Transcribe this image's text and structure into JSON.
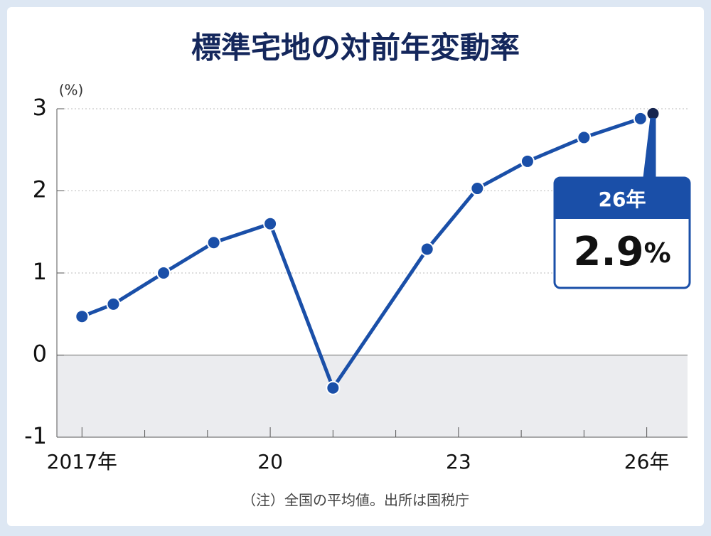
{
  "chart_data": {
    "type": "line",
    "title": "標準宅地の対前年変動率",
    "y_unit": "(%)",
    "note": "（注）全国の平均値。出所は国税庁",
    "x": [
      2017.0,
      2017.5,
      2018.3,
      2019.1,
      2020.0,
      2021.0,
      2022.5,
      2023.3,
      2024.1,
      2025.0,
      2025.9,
      2026.1
    ],
    "series": [
      {
        "name": "標準宅地",
        "color": "#1a4fa8",
        "values": [
          0.47,
          0.62,
          1.0,
          1.37,
          1.6,
          -0.4,
          1.29,
          2.03,
          2.36,
          2.65,
          2.88,
          2.94
        ],
        "value_labels": [
          null,
          null,
          null,
          null,
          null,
          null,
          null,
          null,
          null,
          null,
          null,
          "2.9%"
        ]
      }
    ],
    "callout_title": "26年",
    "xlim": [
      2016.6,
      2026.65
    ],
    "xticks": [
      {
        "value": 2017,
        "label": "2017年"
      },
      {
        "value": 2020,
        "label": "20"
      },
      {
        "value": 2023,
        "label": "23"
      },
      {
        "value": 2026,
        "label": "26年"
      }
    ],
    "xminorticks": [
      2018,
      2019,
      2021,
      2022,
      2024,
      2025
    ],
    "ylim": [
      -1,
      3
    ],
    "yticks": [
      -1,
      0,
      1,
      2,
      3
    ],
    "grid": true
  }
}
